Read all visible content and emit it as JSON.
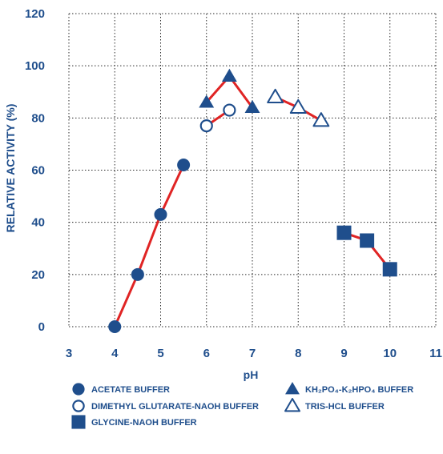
{
  "colors": {
    "navy": "#1f4e8c",
    "red": "#e02424",
    "grid": "#2b2b2b"
  },
  "chart_data": {
    "type": "line",
    "title": "",
    "xlabel": "pH",
    "ylabel": "RELATIVE ACTIVITY (%)",
    "xlim": [
      3,
      11
    ],
    "ylim": [
      0,
      120
    ],
    "xticks": [
      3,
      4,
      5,
      6,
      7,
      8,
      9,
      10,
      11
    ],
    "yticks": [
      0,
      20,
      40,
      60,
      80,
      100,
      120
    ],
    "grid": true,
    "legend_position": "bottom",
    "series": [
      {
        "name": "ACETATE BUFFER",
        "marker": "circle-filled",
        "x": [
          4,
          4.5,
          5,
          5.5
        ],
        "y": [
          0,
          20,
          43,
          62
        ]
      },
      {
        "name": "DIMETHYL GLUTARATE-NAOH BUFFER",
        "marker": "circle-open",
        "x": [
          6,
          6.5
        ],
        "y": [
          77,
          83
        ]
      },
      {
        "name": "GLYCINE-NAOH BUFFER",
        "marker": "square-filled",
        "x": [
          9,
          9.5,
          10
        ],
        "y": [
          36,
          33,
          22
        ]
      },
      {
        "name": "KH₂PO₄-K₂HPO₄ BUFFER",
        "marker": "triangle-filled",
        "x": [
          6,
          6.5,
          7
        ],
        "y": [
          86,
          96,
          84
        ]
      },
      {
        "name": "TRIS-HCL BUFFER",
        "marker": "triangle-open",
        "x": [
          7.5,
          8,
          8.5
        ],
        "y": [
          88,
          84,
          79
        ]
      }
    ]
  }
}
